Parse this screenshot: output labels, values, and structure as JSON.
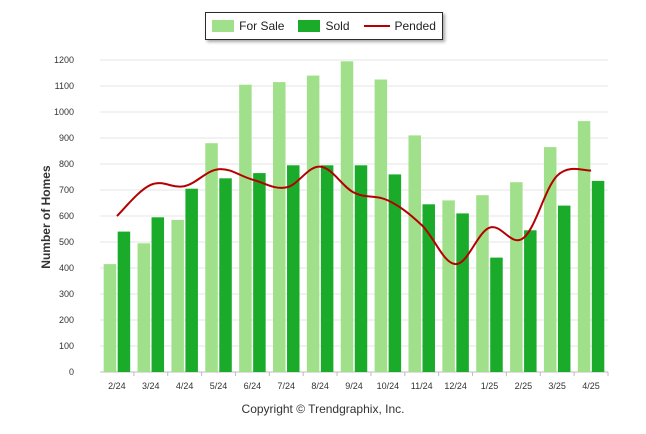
{
  "chart_data": {
    "type": "bar",
    "categories": [
      "2/24",
      "3/24",
      "4/24",
      "5/24",
      "6/24",
      "7/24",
      "8/24",
      "9/24",
      "10/24",
      "11/24",
      "12/24",
      "1/25",
      "2/25",
      "3/25",
      "4/25"
    ],
    "series": [
      {
        "name": "For Sale",
        "type": "bar",
        "color": "#a0e08a",
        "values": [
          415,
          495,
          585,
          880,
          1105,
          1115,
          1140,
          1195,
          1125,
          910,
          660,
          680,
          730,
          865,
          965
        ]
      },
      {
        "name": "Sold",
        "type": "bar",
        "color": "#1aab2b",
        "values": [
          540,
          595,
          705,
          745,
          765,
          795,
          795,
          795,
          760,
          645,
          610,
          440,
          545,
          640,
          735
        ]
      },
      {
        "name": "Pended",
        "type": "line",
        "color": "#b40000",
        "values": [
          600,
          720,
          715,
          780,
          740,
          710,
          790,
          690,
          660,
          565,
          415,
          555,
          515,
          755,
          775
        ]
      }
    ],
    "ylabel": "Number of Homes",
    "ylim": [
      0,
      1200
    ],
    "yticks": [
      0,
      100,
      200,
      300,
      400,
      500,
      600,
      700,
      800,
      900,
      1000,
      1100,
      1200
    ],
    "grid": true,
    "legend_position": "top-center"
  },
  "footer": {
    "copyright": "Copyright © Trendgraphix, Inc."
  }
}
